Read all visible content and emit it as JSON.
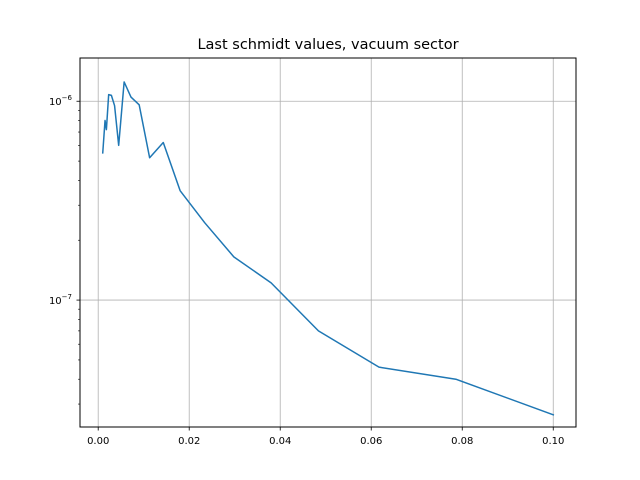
{
  "chart_data": {
    "type": "line",
    "title": "Last schmidt values, vacuum sector",
    "xlabel": "",
    "ylabel": "",
    "xlim": [
      -0.004,
      0.105
    ],
    "ylim": [
      2.3e-08,
      1.65e-06
    ],
    "yscale": "log",
    "grid": true,
    "x_ticks": [
      {
        "value": 0.0,
        "label": "0.00"
      },
      {
        "value": 0.02,
        "label": "0.02"
      },
      {
        "value": 0.04,
        "label": "0.04"
      },
      {
        "value": 0.06,
        "label": "0.06"
      },
      {
        "value": 0.08,
        "label": "0.08"
      },
      {
        "value": 0.1,
        "label": "0.10"
      }
    ],
    "y_ticks": [
      {
        "value": 1e-07,
        "base": "10",
        "exp": "−7"
      },
      {
        "value": 1e-06,
        "base": "10",
        "exp": "−6"
      }
    ],
    "series": [
      {
        "color": "#1f77b4",
        "points": [
          [
            0.001,
            5.5e-07
          ],
          [
            0.0015,
            8e-07
          ],
          [
            0.0018,
            7.2e-07
          ],
          [
            0.0023,
            1.08e-06
          ],
          [
            0.0029,
            1.07e-06
          ],
          [
            0.0036,
            9.5e-07
          ],
          [
            0.0045,
            6e-07
          ],
          [
            0.0057,
            1.25e-06
          ],
          [
            0.0072,
            1.05e-06
          ],
          [
            0.009,
            9.6e-07
          ],
          [
            0.0113,
            5.2e-07
          ],
          [
            0.0143,
            6.2e-07
          ],
          [
            0.018,
            3.55e-07
          ],
          [
            0.0234,
            2.45e-07
          ],
          [
            0.0298,
            1.65e-07
          ],
          [
            0.038,
            1.22e-07
          ],
          [
            0.0484,
            7e-08
          ],
          [
            0.0617,
            4.6e-08
          ],
          [
            0.0786,
            4e-08
          ],
          [
            0.1,
            2.65e-08
          ]
        ]
      }
    ]
  }
}
